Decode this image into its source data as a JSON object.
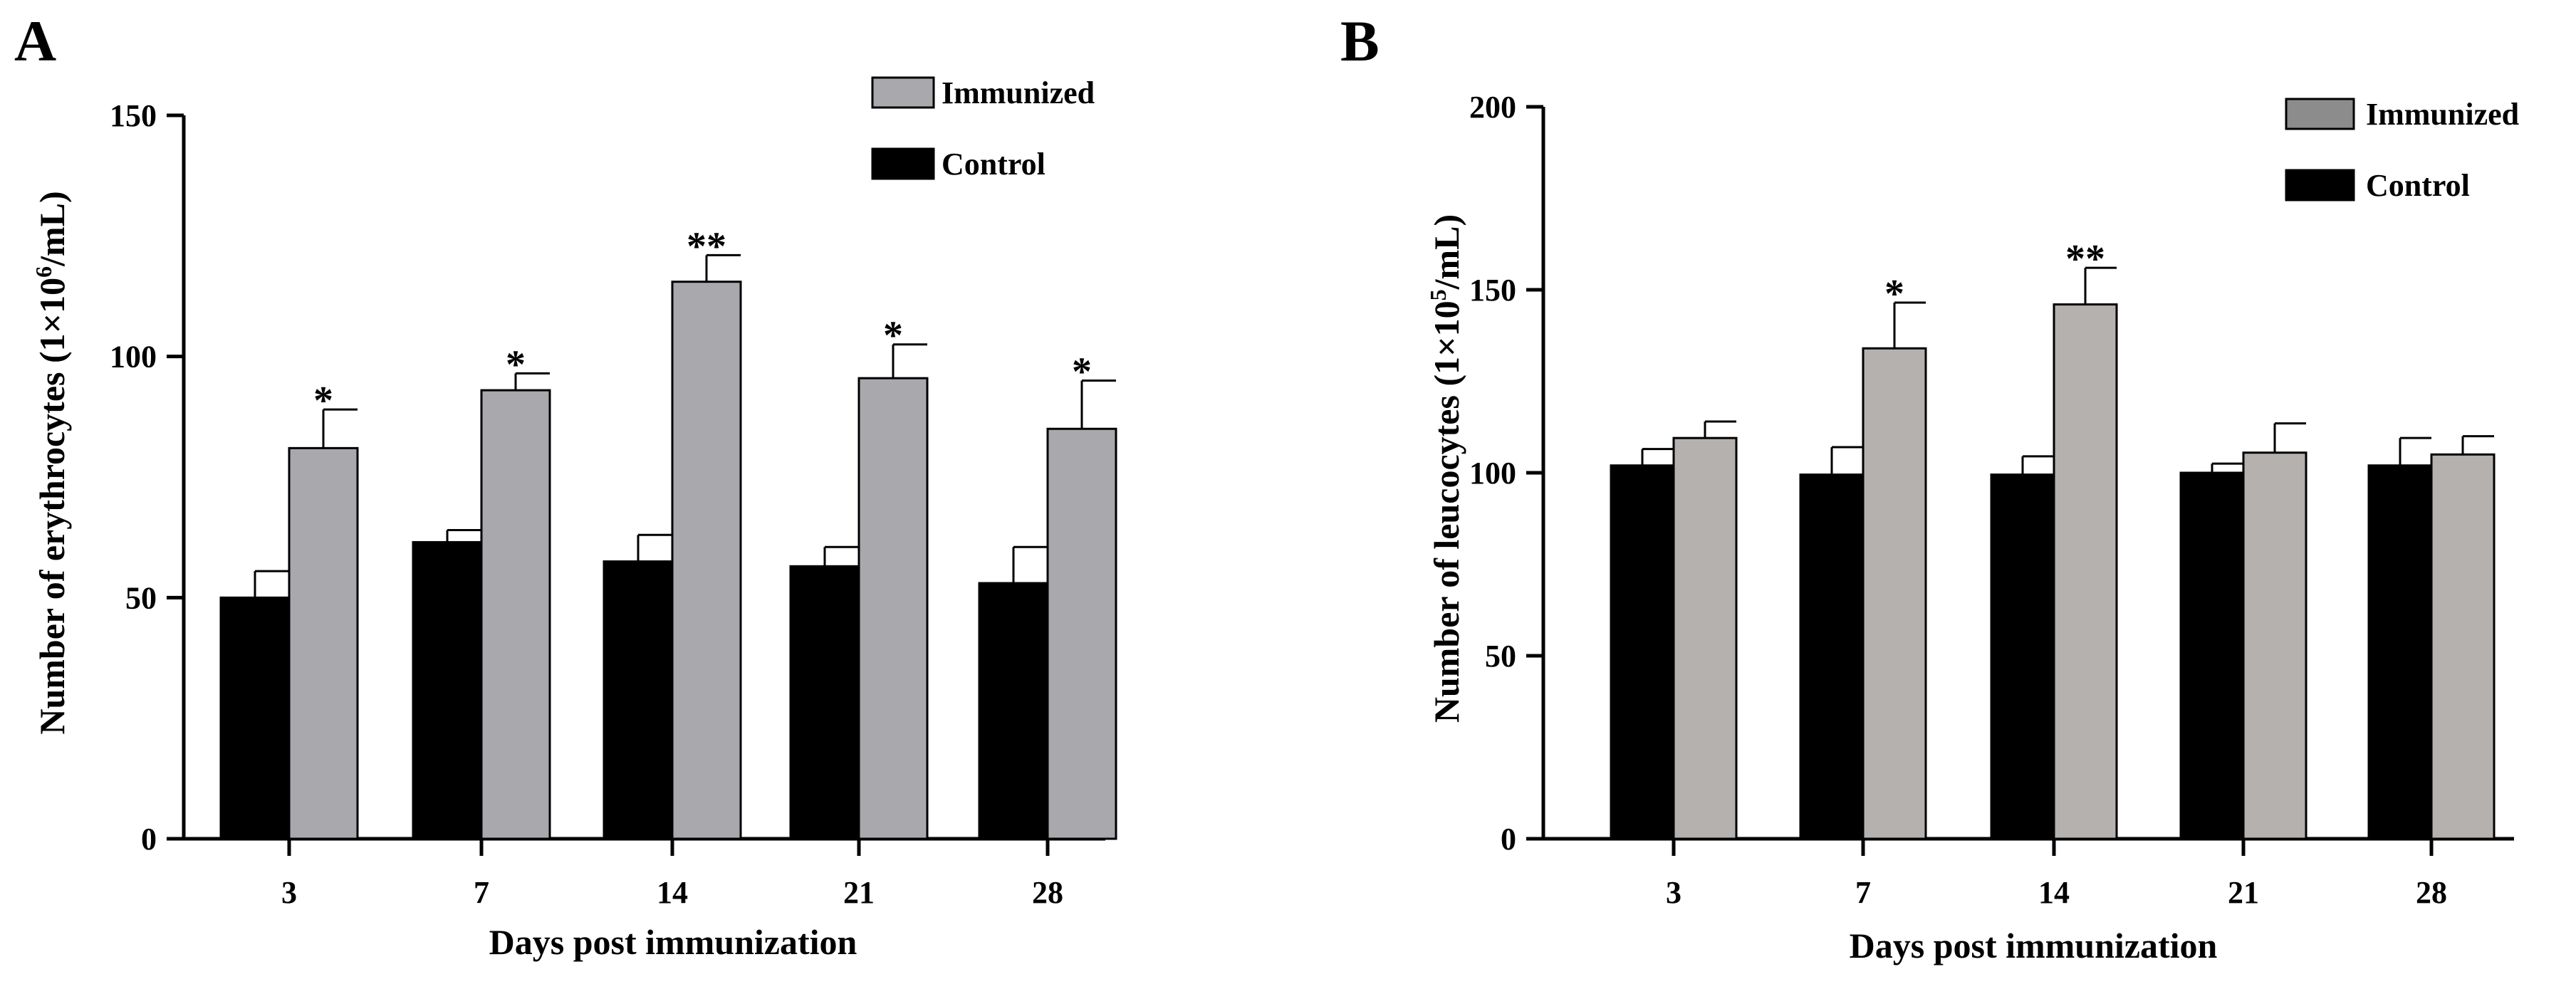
{
  "colors": {
    "control": "#000000",
    "immunized_A": "#a9a9ad",
    "immunized_B": "#b4b1ae",
    "legend_immunized_B": "#8c8c8c",
    "axis": "#000000"
  },
  "chart_data": [
    {
      "panel": "A",
      "type": "bar",
      "title": "",
      "xlabel": "Days post immunization",
      "ylabel_parts": [
        "Number of erythrocytes (1×10",
        "6",
        "/mL)"
      ],
      "categories": [
        "3",
        "7",
        "14",
        "21",
        "28"
      ],
      "ylim": [
        0,
        150
      ],
      "yticks": [
        "0",
        "50",
        "100",
        "150"
      ],
      "legend": [
        "Immunized",
        "Control"
      ],
      "legend_position": "top-right",
      "series": [
        {
          "name": "Control",
          "values": [
            50,
            61.5,
            57.5,
            56.5,
            53
          ],
          "errors": [
            5.5,
            2.5,
            5.5,
            4,
            7.5
          ]
        },
        {
          "name": "Immunized",
          "values": [
            81,
            93,
            115.5,
            95.5,
            85
          ],
          "errors": [
            8,
            3.5,
            5.5,
            7,
            10
          ]
        }
      ],
      "significance": [
        "*",
        "*",
        "**",
        "*",
        "*"
      ]
    },
    {
      "panel": "B",
      "type": "bar",
      "title": "",
      "xlabel": "Days post immunization",
      "ylabel_parts": [
        "Number of leucocytes (1×10",
        "5",
        "/mL)"
      ],
      "categories": [
        "3",
        "7",
        "14",
        "21",
        "28"
      ],
      "ylim": [
        0,
        200
      ],
      "yticks": [
        "0",
        "50",
        "100",
        "150",
        "200"
      ],
      "legend": [
        "Immunized",
        "Control"
      ],
      "legend_position": "top-right",
      "series": [
        {
          "name": "Control",
          "values": [
            102,
            99.5,
            99.5,
            100,
            102
          ],
          "errors": [
            4.5,
            7.5,
            5,
            2.5,
            7.5
          ]
        },
        {
          "name": "Immunized",
          "values": [
            109.5,
            134,
            146,
            105.5,
            105
          ],
          "errors": [
            4.5,
            12.5,
            10,
            8,
            5
          ]
        }
      ],
      "significance": [
        "",
        "*",
        "**",
        "",
        ""
      ]
    }
  ]
}
